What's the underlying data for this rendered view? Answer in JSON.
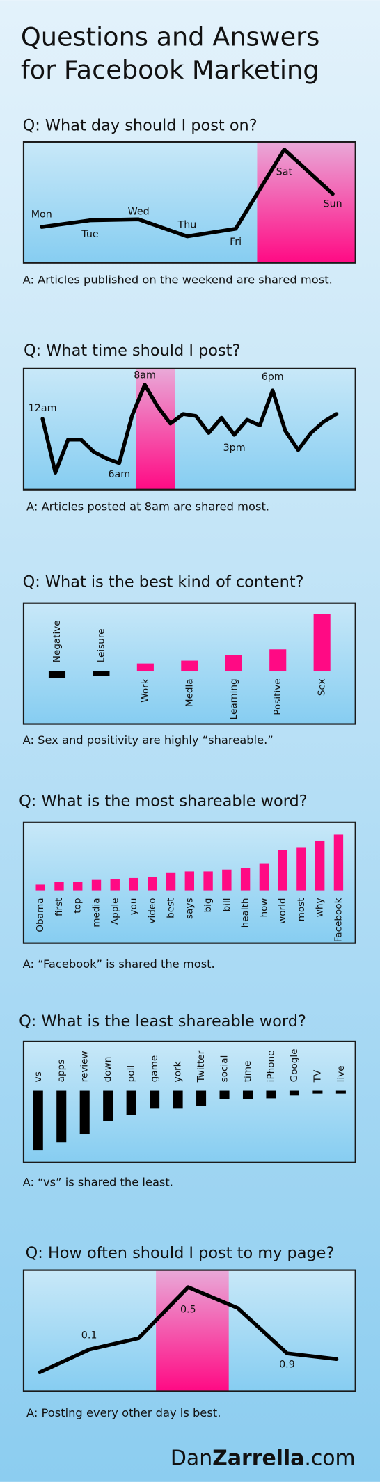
{
  "header": {
    "title_lines": [
      "Questions and Answers",
      "for Facebook Marketing"
    ]
  },
  "chart_data": [
    {
      "type": "line",
      "title": "Q: What day should I post on?",
      "caption": "A: Articles published on the weekend are shared most.",
      "categories": [
        "Mon",
        "Tue",
        "Wed",
        "Thu",
        "Fri",
        "Sat",
        "Sun"
      ],
      "values": [
        38,
        45,
        46,
        28,
        36,
        120,
        73
      ],
      "color": "#000000",
      "ylim": [
        0,
        128
      ]
    },
    {
      "type": "line",
      "title": "Q: What time should I post?",
      "caption": "A: Articles posted at 8am are shared most.",
      "categories": [
        "12am",
        null,
        null,
        null,
        null,
        null,
        "6am",
        null,
        "8am",
        null,
        null,
        null,
        null,
        null,
        null,
        "3pm",
        null,
        null,
        "6pm",
        null,
        null,
        null,
        null,
        null
      ],
      "values": [
        75,
        18,
        53,
        53,
        40,
        33,
        28,
        78,
        111,
        88,
        70,
        80,
        78,
        60,
        76,
        58,
        74,
        68,
        105,
        62,
        42,
        60,
        72,
        80
      ],
      "color": "#000000",
      "ylim": [
        0,
        128
      ]
    },
    {
      "type": "bar",
      "title": "Q: What is the best kind of content?",
      "caption": "A: Sex and positivity are highly “shareable.”",
      "categories": [
        "Negative",
        "Leisure",
        "Work",
        "Media",
        "Learning",
        "Positive",
        "Sex"
      ],
      "values": [
        -7,
        -5,
        8,
        11,
        17,
        23,
        60
      ],
      "colors": [
        "#000000",
        "#000000",
        "#ff0a84",
        "#ff0a84",
        "#ff0a84",
        "#ff0a84",
        "#ff0a84"
      ],
      "ylim": [
        -56,
        72
      ]
    },
    {
      "type": "bar",
      "title": "Q: What is the most shareable word?",
      "caption": "A: “Facebook” is shared the most.",
      "categories": [
        "Obama",
        "first",
        "top",
        "media",
        "Apple",
        "you",
        "video",
        "best",
        "says",
        "big",
        "bill",
        "health",
        "how",
        "world",
        "most",
        "why",
        "Facebook"
      ],
      "values": [
        6,
        9,
        9,
        11,
        12,
        13,
        14,
        19,
        20,
        20,
        22,
        24,
        28,
        43,
        45,
        52,
        59
      ],
      "color": "#ff0a84",
      "ylim": [
        -56,
        72
      ]
    },
    {
      "type": "bar",
      "title": "Q: What is the least shareable word?",
      "caption": "A: “vs” is shared the least.",
      "categories": [
        "vs",
        "apps",
        "review",
        "down",
        "poll",
        "game",
        "york",
        "Twitter",
        "social",
        "time",
        "iPhone",
        "Google",
        "TV",
        "live"
      ],
      "values": [
        -63,
        -55,
        -46,
        -32,
        -26,
        -19,
        -19,
        -16,
        -9,
        -9,
        -8,
        -5,
        -3,
        -3
      ],
      "color": "#000000",
      "ylim": [
        -76,
        52
      ]
    },
    {
      "type": "line",
      "title": "Q: How often should I post to my page?",
      "caption": "A: Posting every other day is best.",
      "categories": [
        null,
        "0.1",
        null,
        "0.5",
        null,
        "0.9",
        null
      ],
      "values": [
        20,
        44,
        56,
        110,
        88,
        40,
        34
      ],
      "color": "#000000",
      "ylim": [
        0,
        128
      ]
    }
  ],
  "footer": {
    "parts": [
      "Dan",
      "Zarrella",
      ".com"
    ]
  }
}
